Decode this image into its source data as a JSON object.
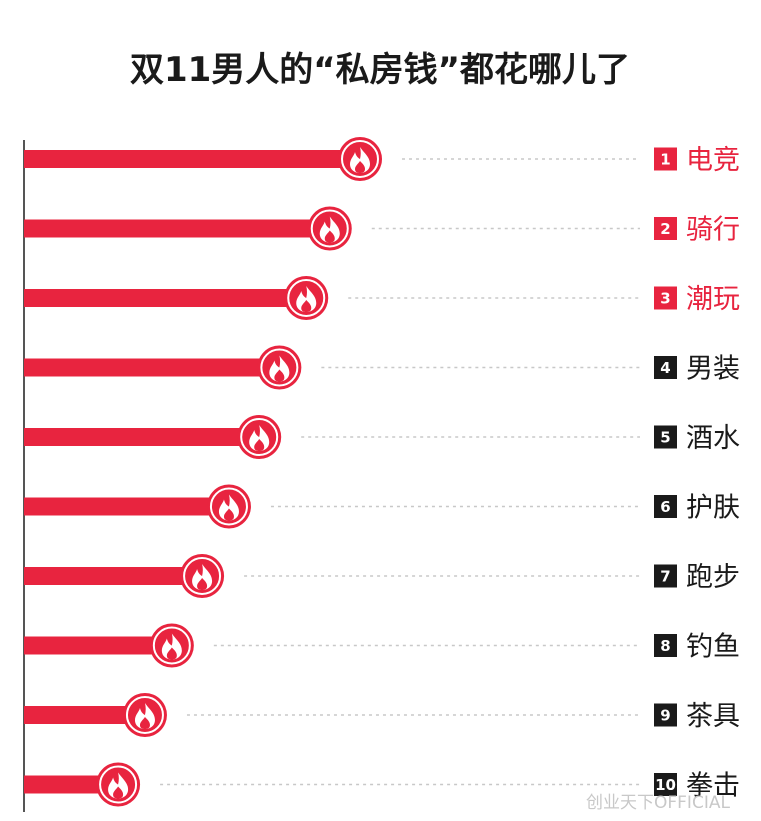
{
  "title": "双11男人的“私房钱”都花哪儿了",
  "watermark": "创业天下OFFICIAL",
  "colors": {
    "bar": "#e8243f",
    "top_label": "#e8243f",
    "other_label": "#1a1a1a",
    "top_rank_box": "#e8243f",
    "other_rank_box": "#1a1a1a",
    "leader": "#c8c8c8"
  },
  "icons": {
    "bar_end": "flame-icon"
  },
  "chart_data": {
    "type": "bar",
    "orientation": "horizontal",
    "title": "双11男人的“私房钱”都花哪儿了",
    "xlabel": "",
    "ylabel": "",
    "categories": [
      "电竞",
      "骑行",
      "潮玩",
      "男装",
      "酒水",
      "护肤",
      "跑步",
      "钓鱼",
      "茶具",
      "拳击"
    ],
    "ranks": [
      "1",
      "2",
      "3",
      "4",
      "5",
      "6",
      "7",
      "8",
      "9",
      "10"
    ],
    "values": [
      100,
      91,
      84,
      76,
      70,
      61,
      53,
      44,
      36,
      28
    ],
    "value_note": "relative bar lengths, no axis printed",
    "xlim": [
      0,
      100
    ],
    "highlight_top": 3,
    "grid": false,
    "legend": "none"
  }
}
